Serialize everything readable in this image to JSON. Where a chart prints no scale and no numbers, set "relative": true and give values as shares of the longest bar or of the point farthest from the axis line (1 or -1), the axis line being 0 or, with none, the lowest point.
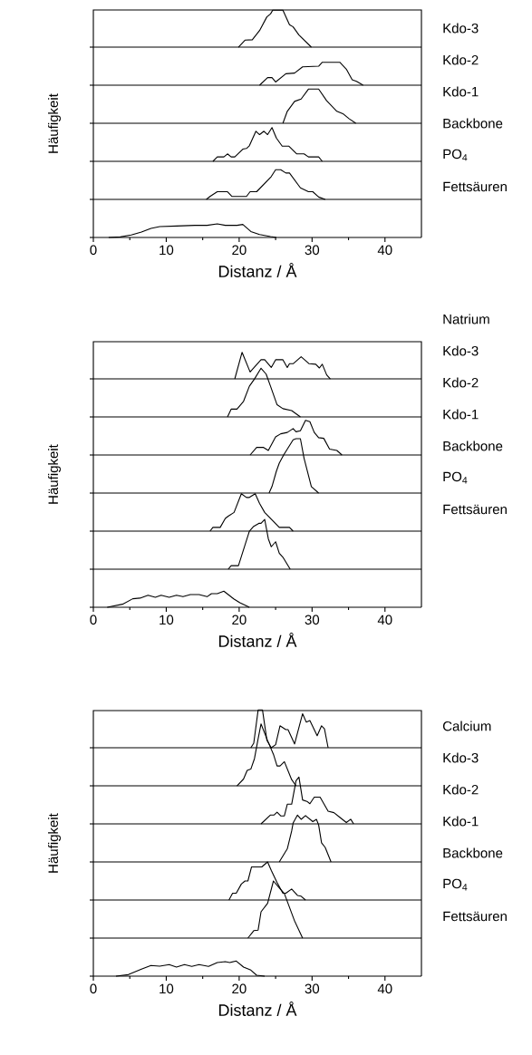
{
  "chart_data": [
    {
      "type": "line",
      "relative": true,
      "xlim": [
        0,
        45
      ],
      "tick_labels": false,
      "x": [
        19.9,
        20.8,
        21.8,
        22.8,
        23.8,
        24.3,
        24.6,
        26.0,
        26.9,
        27.4,
        28.2,
        29.9
      ],
      "series": [
        {
          "name": "Kdo-3",
          "color": "#000000",
          "values": [
            0,
            0.19,
            0.2,
            0.45,
            0.82,
            0.9,
            1,
            1,
            0.61,
            0.55,
            0.33,
            0
          ]
        }
      ]
    },
    {
      "type": "line",
      "relative": true,
      "xlim": [
        0,
        45
      ],
      "tick_labels": false,
      "x": [
        22.8,
        23.9,
        24.5,
        25.0,
        26.4,
        27.6,
        28.7,
        30.9,
        31.4,
        33.8,
        34.7,
        35.5,
        36.1,
        37.0
      ],
      "series": [
        {
          "name": "Kdo-2",
          "color": "#000000",
          "values": [
            0,
            0.33,
            0.33,
            0.14,
            0.5,
            0.53,
            0.8,
            0.83,
            1,
            1,
            0.7,
            0.24,
            0.17,
            0
          ]
        }
      ]
    },
    {
      "type": "line",
      "relative": true,
      "xlim": [
        0,
        45
      ],
      "tick_labels": false,
      "ylabel": "Häufigkeit",
      "x": [
        26.0,
        26.6,
        27.6,
        28.5,
        29.5,
        30.9,
        32.0,
        33.4,
        34.3,
        35.1,
        36.0
      ],
      "series": [
        {
          "name": "Kdo-1",
          "color": "#000000",
          "values": [
            0,
            0.35,
            0.64,
            0.71,
            1,
            1,
            0.66,
            0.35,
            0.27,
            0.13,
            0
          ]
        }
      ]
    },
    {
      "type": "line",
      "relative": true,
      "xlim": [
        0,
        45
      ],
      "tick_labels": false,
      "x": [
        16.4,
        17.0,
        17.9,
        18.4,
        18.9,
        19.4,
        20.5,
        21.0,
        21.4,
        22.3,
        22.8,
        23.4,
        23.9,
        24.5,
        25.1,
        25.9,
        26.8,
        27.9,
        28.9,
        29.5,
        30.9,
        31.4
      ],
      "series": [
        {
          "name": "Backbone",
          "color": "#000000",
          "values": [
            0,
            0.13,
            0.13,
            0.22,
            0.13,
            0.13,
            0.36,
            0.38,
            0.46,
            0.89,
            0.79,
            0.89,
            0.79,
            1,
            0.69,
            0.45,
            0.45,
            0.22,
            0.22,
            0.13,
            0.13,
            0
          ]
        }
      ]
    },
    {
      "type": "line",
      "relative": true,
      "xlim": [
        0,
        45
      ],
      "tick_labels": false,
      "x": [
        15.5,
        16.0,
        17.0,
        18.4,
        19.0,
        21.0,
        21.5,
        22.4,
        24.4,
        25.0,
        25.7,
        26.4,
        26.9,
        28.4,
        29.5,
        30.1,
        30.9,
        31.8
      ],
      "series": [
        {
          "name": "PO$_{4}$",
          "color": "#000000",
          "values": [
            0,
            0.1,
            0.26,
            0.26,
            0.1,
            0.1,
            0.26,
            0.26,
            0.77,
            1,
            1,
            0.89,
            0.89,
            0.39,
            0.26,
            0.26,
            0.08,
            0
          ]
        }
      ]
    },
    {
      "type": "line",
      "relative": true,
      "xlim": [
        0,
        45
      ],
      "xticks": [
        0,
        {
          "value": 5,
          "label": null
        },
        10,
        {
          "value": 15,
          "label": null
        },
        20,
        {
          "value": 25,
          "label": null
        },
        30,
        {
          "value": 35,
          "label": null
        },
        40
      ],
      "tick_labels": "x",
      "xlabel": "Distanz / Å",
      "x": [
        2.1,
        3.7,
        5.2,
        6.6,
        7.9,
        9.1,
        11.4,
        13.9,
        15.6,
        17.0,
        18.1,
        19.7,
        20.5,
        21.6,
        22.8,
        24.3,
        25.1
      ],
      "series": [
        {
          "name": "Fettsäuren",
          "color": "#000000",
          "values": [
            0,
            0.04,
            0.18,
            0.4,
            0.67,
            0.8,
            0.84,
            0.89,
            0.89,
            1,
            0.89,
            0.89,
            0.96,
            0.44,
            0.22,
            0.07,
            0
          ]
        }
      ]
    },
    {
      "type": "line",
      "relative": true,
      "xlim": [
        0,
        45
      ],
      "tick_labels": false,
      "x": [
        19.4,
        20.4,
        21.5,
        23.0,
        23.5,
        24.4,
        25.0,
        26.0,
        26.6,
        26.9,
        27.4,
        28.5,
        29.6,
        30.5,
        31.0,
        31.4,
        32.0,
        32.5
      ],
      "series": [
        {
          "name": "Natrium",
          "color": "#000000",
          "values": [
            0,
            1,
            0.26,
            0.72,
            0.72,
            0.43,
            0.72,
            0.72,
            0.43,
            0.57,
            0.57,
            0.83,
            0.57,
            0.55,
            0.41,
            0.55,
            0.15,
            0
          ]
        }
      ]
    },
    {
      "type": "line",
      "relative": true,
      "xlim": [
        0,
        45
      ],
      "tick_labels": false,
      "x": [
        18.4,
        18.9,
        19.7,
        20.6,
        21.4,
        22.1,
        23.0,
        23.7,
        24.3,
        25.2,
        26.0,
        27.2,
        28.4
      ],
      "series": [
        {
          "name": "Kdo-3",
          "color": "#000000",
          "values": [
            0,
            0.16,
            0.16,
            0.32,
            0.63,
            0.78,
            1,
            0.88,
            0.63,
            0.25,
            0.17,
            0.13,
            0
          ]
        }
      ]
    },
    {
      "type": "line",
      "relative": true,
      "xlim": [
        0,
        45
      ],
      "tick_labels": false,
      "x": [
        21.5,
        22.4,
        23.3,
        24.0,
        25.0,
        25.7,
        26.6,
        27.4,
        27.8,
        28.4,
        29.1,
        29.7,
        30.3,
        30.9,
        31.6,
        32.4,
        33.4,
        34.1
      ],
      "series": [
        {
          "name": "Kdo-2",
          "color": "#000000",
          "values": [
            0,
            0.22,
            0.22,
            0.13,
            0.52,
            0.61,
            0.65,
            0.76,
            0.67,
            0.7,
            1,
            0.96,
            0.65,
            0.5,
            0.48,
            0.17,
            0.13,
            0
          ]
        }
      ]
    },
    {
      "type": "line",
      "relative": true,
      "xlim": [
        0,
        45
      ],
      "tick_labels": false,
      "ylabel": "Häufigkeit",
      "x": [
        24.1,
        24.5,
        25.1,
        25.5,
        26.1,
        27.4,
        27.8,
        28.4,
        28.9,
        29.9,
        30.9
      ],
      "series": [
        {
          "name": "Kdo-1",
          "color": "#000000",
          "values": [
            0,
            0.12,
            0.4,
            0.55,
            0.7,
            0.98,
            1,
            1,
            0.64,
            0.12,
            0
          ]
        }
      ]
    },
    {
      "type": "line",
      "relative": true,
      "xlim": [
        0,
        45
      ],
      "tick_labels": false,
      "x": [
        16.0,
        16.4,
        17.4,
        18.1,
        18.5,
        19.3,
        20.3,
        21.0,
        21.4,
        22.2,
        22.8,
        23.5,
        24.5,
        25.5,
        26.9,
        27.4
      ],
      "series": [
        {
          "name": "Backbone",
          "color": "#000000",
          "values": [
            0,
            0.1,
            0.1,
            0.34,
            0.4,
            0.5,
            1,
            0.9,
            0.9,
            1,
            0.74,
            0.5,
            0.3,
            0.1,
            0.1,
            0
          ]
        }
      ]
    },
    {
      "type": "line",
      "relative": true,
      "xlim": [
        0,
        45
      ],
      "tick_labels": false,
      "x": [
        18.5,
        18.9,
        19.9,
        21.4,
        22.0,
        22.7,
        23.0,
        23.5,
        24.0,
        24.4,
        25.0,
        25.5,
        26.0,
        27.0
      ],
      "series": [
        {
          "name": "PO$_{4}$",
          "color": "#000000",
          "values": [
            0,
            0.07,
            0.07,
            0.76,
            0.86,
            0.92,
            0.92,
            1,
            0.61,
            0.45,
            0.55,
            0.32,
            0.24,
            0
          ]
        }
      ]
    },
    {
      "type": "line",
      "relative": true,
      "xlim": [
        0,
        45
      ],
      "xticks": [
        0,
        {
          "value": 5,
          "label": null
        },
        10,
        {
          "value": 15,
          "label": null
        },
        20,
        {
          "value": 25,
          "label": null
        },
        30,
        {
          "value": 35,
          "label": null
        },
        40
      ],
      "tick_labels": "x",
      "xlabel": "Distanz / Å",
      "x": [
        1.9,
        4.0,
        5.4,
        6.4,
        7.5,
        8.5,
        9.3,
        10.4,
        11.4,
        12.3,
        13.3,
        14.5,
        15.6,
        16.2,
        17.0,
        17.9,
        19.3,
        20.1,
        21.4
      ],
      "series": [
        {
          "name": "Fettsäuren",
          "color": "#000000",
          "values": [
            0,
            0.19,
            0.53,
            0.57,
            0.75,
            0.62,
            0.75,
            0.62,
            0.75,
            0.66,
            0.79,
            0.79,
            0.66,
            0.85,
            0.85,
            1,
            0.51,
            0.28,
            0
          ]
        }
      ]
    },
    {
      "type": "line",
      "relative": true,
      "xlim": [
        0,
        45
      ],
      "tick_labels": false,
      "x": [
        21.6,
        22.0,
        22.6,
        23.2,
        23.8,
        24.4,
        25.0,
        25.6,
        26.4,
        26.7,
        27.6,
        28.7,
        29.2,
        29.7,
        30.7,
        31.3,
        31.7,
        32.2
      ],
      "series": [
        {
          "name": "Calcium",
          "color": "#000000",
          "values": [
            0,
            0.12,
            1,
            1,
            0.2,
            0,
            0.08,
            0.58,
            0.48,
            0.48,
            0.1,
            0.9,
            0.68,
            0.72,
            0.32,
            0.58,
            0.5,
            0
          ]
        }
      ]
    },
    {
      "type": "line",
      "relative": true,
      "xlim": [
        0,
        45
      ],
      "tick_labels": false,
      "x": [
        19.7,
        20.6,
        21.1,
        21.6,
        22.1,
        22.6,
        23.0,
        23.9,
        24.7,
        25.2,
        25.6,
        26.2,
        27.2,
        27.8
      ],
      "series": [
        {
          "name": "Kdo-3",
          "color": "#000000",
          "values": [
            0,
            0.11,
            0.25,
            0.27,
            0.44,
            0.76,
            1,
            0.73,
            0.51,
            0.32,
            0.32,
            0.39,
            0.1,
            0
          ]
        }
      ]
    },
    {
      "type": "line",
      "relative": true,
      "xlim": [
        0,
        45
      ],
      "tick_labels": false,
      "x": [
        23.0,
        24.3,
        24.8,
        25.2,
        25.7,
        26.2,
        26.6,
        27.2,
        27.8,
        28.2,
        28.7,
        29.3,
        29.7,
        30.3,
        31.1,
        32.2,
        33.0,
        33.8,
        34.7,
        35.3,
        35.7
      ],
      "series": [
        {
          "name": "Kdo-2",
          "color": "#000000",
          "values": [
            0,
            0.19,
            0.19,
            0.25,
            0.17,
            0.17,
            0.42,
            0.42,
            0.92,
            1,
            0.51,
            0.48,
            0.43,
            0.57,
            0.57,
            0.27,
            0.24,
            0.14,
            0.03,
            0.1,
            0
          ]
        }
      ]
    },
    {
      "type": "line",
      "relative": true,
      "xlim": [
        0,
        45
      ],
      "tick_labels": false,
      "ylabel": "Häufigkeit",
      "x": [
        25.5,
        26.6,
        27.2,
        27.4,
        28.0,
        28.5,
        29.1,
        30.1,
        30.6,
        30.9,
        31.3,
        31.8,
        32.6
      ],
      "series": [
        {
          "name": "Kdo-1",
          "color": "#000000",
          "values": [
            0,
            0.28,
            0.66,
            0.83,
            1,
            0.91,
            0.99,
            0.86,
            0.91,
            0.79,
            0.41,
            0.31,
            0
          ]
        }
      ]
    },
    {
      "type": "line",
      "relative": true,
      "xlim": [
        0,
        45
      ],
      "tick_labels": false,
      "x": [
        18.6,
        19.1,
        19.6,
        20.3,
        20.8,
        21.2,
        21.7,
        23.1,
        23.9,
        24.4,
        25.2,
        26.0,
        26.4,
        27.2,
        28.0,
        28.5,
        29.1
      ],
      "series": [
        {
          "name": "Backbone",
          "color": "#000000",
          "values": [
            0,
            0.18,
            0.18,
            0.42,
            0.5,
            0.5,
            0.87,
            0.87,
            1,
            0.78,
            0.46,
            0.18,
            0.18,
            0.29,
            0.12,
            0.1,
            0
          ]
        }
      ]
    },
    {
      "type": "line",
      "relative": true,
      "xlim": [
        0,
        45
      ],
      "tick_labels": false,
      "x": [
        21.2,
        22.0,
        22.6,
        23.0,
        23.9,
        24.7,
        25.5,
        26.2,
        27.6,
        28.7
      ],
      "series": [
        {
          "name": "PO$_{4}$",
          "color": "#000000",
          "values": [
            0,
            0.13,
            0.14,
            0.46,
            0.61,
            1,
            0.88,
            0.78,
            0.3,
            0
          ]
        }
      ]
    },
    {
      "type": "line",
      "relative": true,
      "xlim": [
        0,
        45
      ],
      "xticks": [
        0,
        {
          "value": 5,
          "label": null
        },
        10,
        {
          "value": 15,
          "label": null
        },
        20,
        {
          "value": 25,
          "label": null
        },
        30,
        {
          "value": 35,
          "label": null
        },
        40
      ],
      "tick_labels": "x",
      "xlabel": "Distanz / Å",
      "x": [
        3.1,
        4.8,
        6.6,
        7.9,
        9.1,
        10.4,
        11.4,
        12.5,
        13.5,
        14.5,
        15.8,
        17.0,
        18.1,
        18.7,
        19.6,
        20.6,
        21.6,
        22.4,
        23.5
      ],
      "series": [
        {
          "name": "Fettsäuren",
          "color": "#000000",
          "values": [
            0,
            0.1,
            0.46,
            0.7,
            0.66,
            0.76,
            0.6,
            0.76,
            0.64,
            0.76,
            0.64,
            0.9,
            0.96,
            0.9,
            1,
            0.6,
            0.4,
            0.06,
            0
          ]
        }
      ]
    }
  ]
}
